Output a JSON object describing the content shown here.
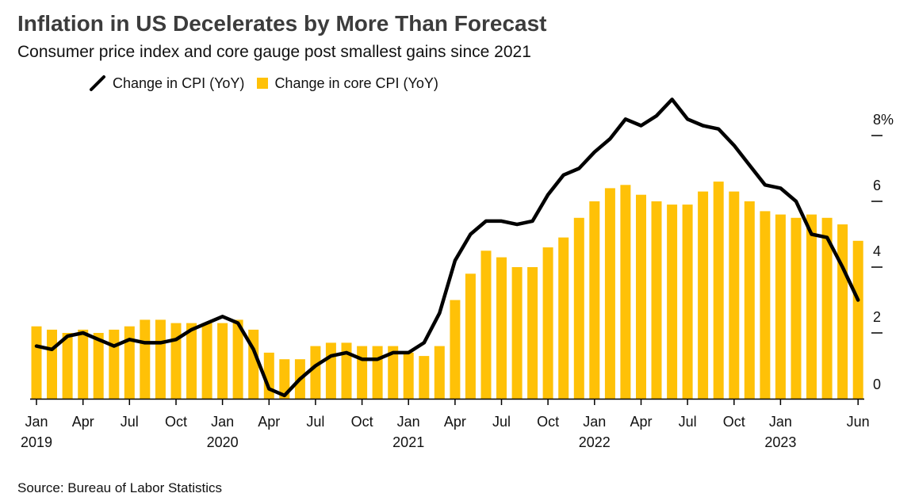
{
  "header": {
    "title": "Inflation in US Decelerates by More Than Forecast",
    "subtitle": "Consumer price index and core gauge post smallest gains since 2021"
  },
  "legend": {
    "line_label": "Change in CPI (YoY)",
    "bar_label": "Change in core CPI (YoY)"
  },
  "footer": {
    "source": "Source: Bureau of Labor Statistics"
  },
  "colors": {
    "cpi_line": "#000000",
    "core_bars": "#FFC107",
    "axis": "#000000"
  },
  "chart_data": {
    "type": "bar",
    "title": "Inflation in US Decelerates by More Than Forecast",
    "subtitle": "Consumer price index and core gauge post smallest gains since 2021",
    "x": [
      "2019-01",
      "2019-02",
      "2019-03",
      "2019-04",
      "2019-05",
      "2019-06",
      "2019-07",
      "2019-08",
      "2019-09",
      "2019-10",
      "2019-11",
      "2019-12",
      "2020-01",
      "2020-02",
      "2020-03",
      "2020-04",
      "2020-05",
      "2020-06",
      "2020-07",
      "2020-08",
      "2020-09",
      "2020-10",
      "2020-11",
      "2020-12",
      "2021-01",
      "2021-02",
      "2021-03",
      "2021-04",
      "2021-05",
      "2021-06",
      "2021-07",
      "2021-08",
      "2021-09",
      "2021-10",
      "2021-11",
      "2021-12",
      "2022-01",
      "2022-02",
      "2022-03",
      "2022-04",
      "2022-05",
      "2022-06",
      "2022-07",
      "2022-08",
      "2022-09",
      "2022-10",
      "2022-11",
      "2022-12",
      "2023-01",
      "2023-02",
      "2023-03",
      "2023-04",
      "2023-05",
      "2023-06"
    ],
    "series": [
      {
        "name": "Change in core CPI (YoY)",
        "type": "bar",
        "values": [
          2.2,
          2.1,
          2.0,
          2.1,
          2.0,
          2.1,
          2.2,
          2.4,
          2.4,
          2.3,
          2.3,
          2.3,
          2.3,
          2.4,
          2.1,
          1.4,
          1.2,
          1.2,
          1.6,
          1.7,
          1.7,
          1.6,
          1.6,
          1.6,
          1.4,
          1.3,
          1.6,
          3.0,
          3.8,
          4.5,
          4.3,
          4.0,
          4.0,
          4.6,
          4.9,
          5.5,
          6.0,
          6.4,
          6.5,
          6.2,
          6.0,
          5.9,
          5.9,
          6.3,
          6.6,
          6.3,
          6.0,
          5.7,
          5.6,
          5.5,
          5.6,
          5.5,
          5.3,
          4.8
        ]
      },
      {
        "name": "Change in CPI (YoY)",
        "type": "line",
        "values": [
          1.6,
          1.5,
          1.9,
          2.0,
          1.8,
          1.6,
          1.8,
          1.7,
          1.7,
          1.8,
          2.1,
          2.3,
          2.5,
          2.3,
          1.5,
          0.3,
          0.1,
          0.6,
          1.0,
          1.3,
          1.4,
          1.2,
          1.2,
          1.4,
          1.4,
          1.7,
          2.6,
          4.2,
          5.0,
          5.4,
          5.4,
          5.3,
          5.4,
          6.2,
          6.8,
          7.0,
          7.5,
          7.9,
          8.5,
          8.3,
          8.6,
          9.1,
          8.5,
          8.3,
          8.2,
          7.7,
          7.1,
          6.5,
          6.4,
          6.0,
          5.0,
          4.9,
          4.0,
          3.0
        ]
      }
    ],
    "x_ticks": [
      {
        "label": "Jan",
        "year": "2019"
      },
      {
        "label": "Apr",
        "year": ""
      },
      {
        "label": "Jul",
        "year": ""
      },
      {
        "label": "Oct",
        "year": ""
      },
      {
        "label": "Jan",
        "year": "2020"
      },
      {
        "label": "Apr",
        "year": ""
      },
      {
        "label": "Jul",
        "year": ""
      },
      {
        "label": "Oct",
        "year": ""
      },
      {
        "label": "Jan",
        "year": "2021"
      },
      {
        "label": "Apr",
        "year": ""
      },
      {
        "label": "Jul",
        "year": ""
      },
      {
        "label": "Oct",
        "year": ""
      },
      {
        "label": "Jan",
        "year": "2022"
      },
      {
        "label": "Apr",
        "year": ""
      },
      {
        "label": "Jul",
        "year": ""
      },
      {
        "label": "Oct",
        "year": ""
      },
      {
        "label": "Jan",
        "year": "2023"
      },
      {
        "label": "Jun",
        "year": ""
      }
    ],
    "y_ticks": [
      {
        "value": 8,
        "label": "8%"
      },
      {
        "value": 6,
        "label": "6"
      },
      {
        "value": 4,
        "label": "4"
      },
      {
        "value": 2,
        "label": "2"
      },
      {
        "value": 0,
        "label": "0"
      }
    ],
    "ylim": [
      0,
      9.3
    ],
    "y_axis_side": "right",
    "grid": false,
    "legend_position": "top-left"
  }
}
